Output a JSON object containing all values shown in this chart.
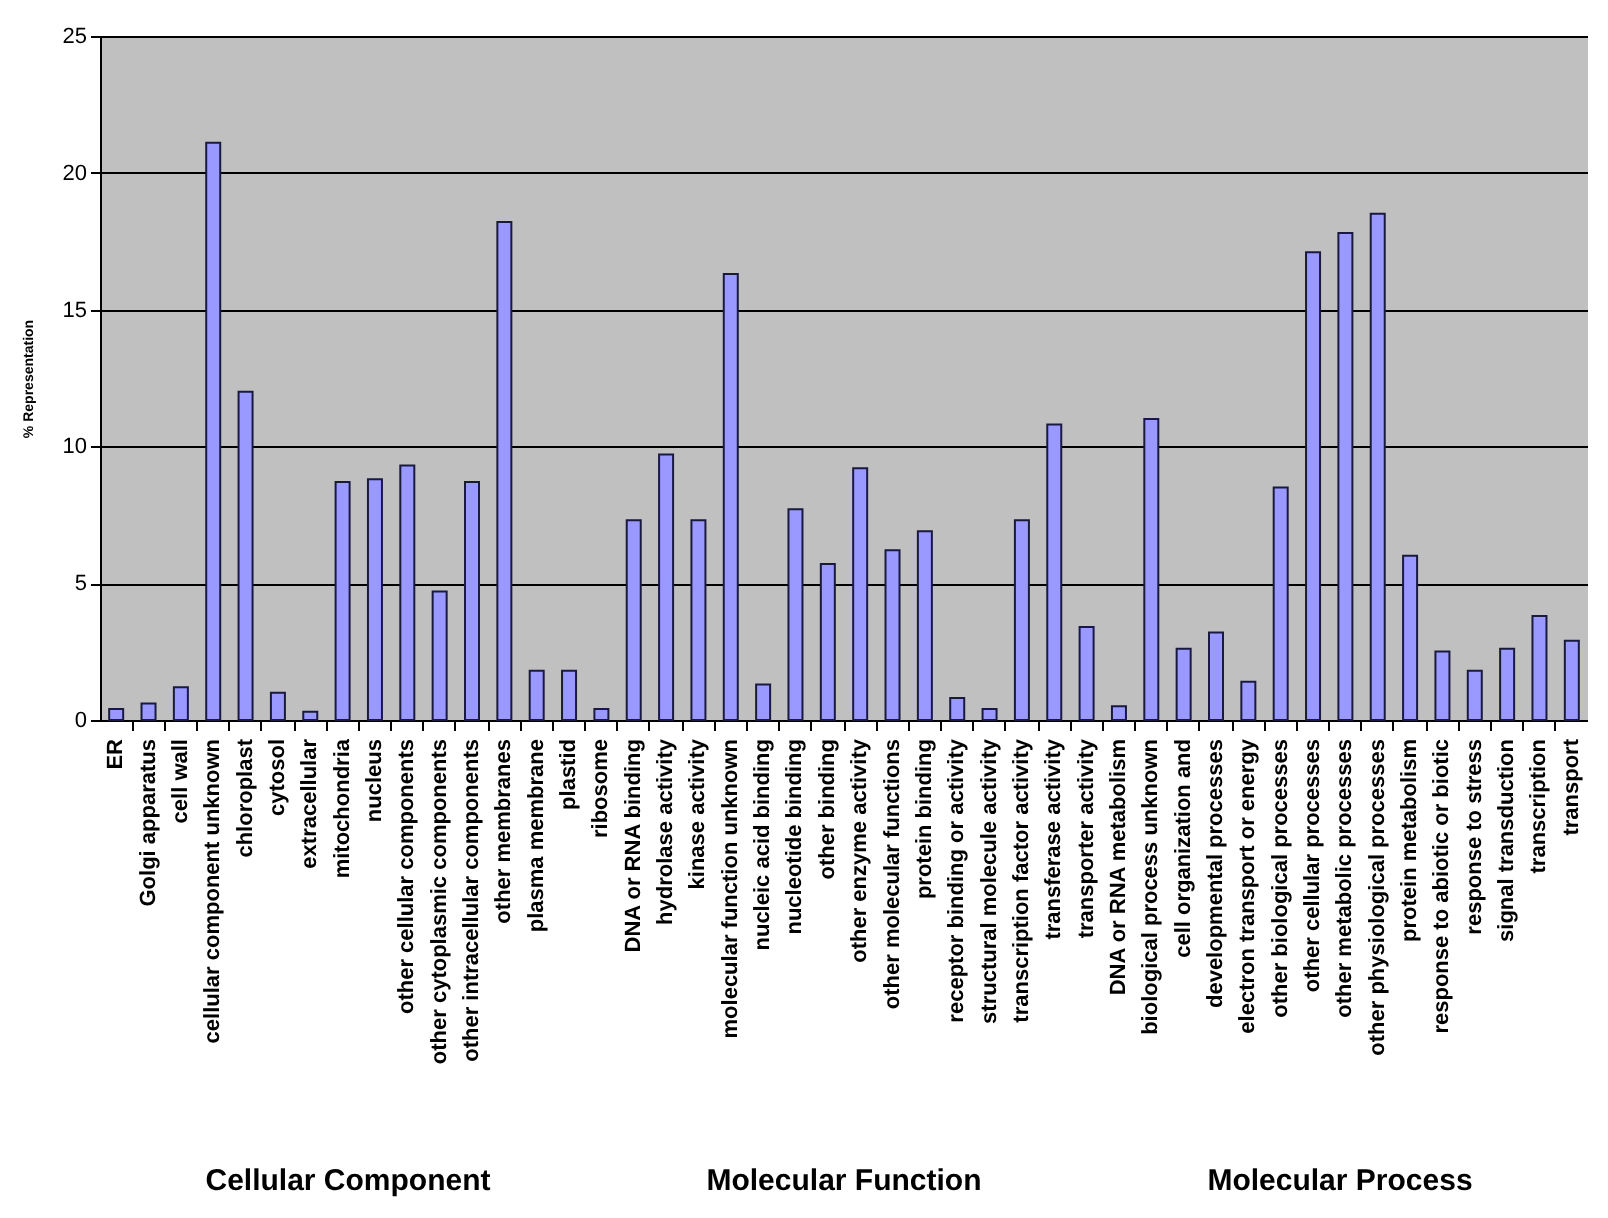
{
  "chart_data": {
    "type": "bar",
    "ylabel": "% Representation",
    "categories": [
      "ER",
      "Golgi apparatus",
      "cell wall",
      "cellular component unknown",
      "chloroplast",
      "cytosol",
      "extracellular",
      "mitochondria",
      "nucleus",
      "other cellular components",
      "other cytoplasmic components",
      "other intracellular components",
      "other membranes",
      "plasma membrane",
      "plastid",
      "ribosome",
      "DNA or RNA binding",
      "hydrolase activity",
      "kinase activity",
      "molecular function unknown",
      "nucleic acid binding",
      "nucleotide binding",
      "other binding",
      "other enzyme activity",
      "other molecular functions",
      "protein binding",
      "receptor binding or activity",
      "structural molecule activity",
      "transcription factor activity",
      "transferase activity",
      "transporter activity",
      "DNA or RNA metabolism",
      "biological process unknown",
      "cell organization and",
      "developmental processes",
      "electron transport or energy",
      "other biological processes",
      "other cellular processes",
      "other metabolic processes",
      "other physiological processes",
      "protein metabolism",
      "response to abiotic or biotic",
      "response to stress",
      "signal transduction",
      "transcription",
      "transport"
    ],
    "values": [
      0.4,
      0.6,
      1.2,
      21.1,
      12.0,
      1.0,
      0.3,
      8.7,
      8.8,
      9.3,
      4.7,
      8.7,
      18.2,
      1.8,
      1.8,
      0.4,
      7.3,
      9.7,
      7.3,
      16.3,
      1.3,
      7.7,
      5.7,
      9.2,
      6.2,
      6.9,
      0.8,
      0.4,
      7.3,
      10.8,
      3.4,
      0.5,
      11.0,
      2.6,
      3.2,
      1.4,
      8.5,
      17.1,
      17.8,
      18.5,
      6.0,
      2.5,
      1.8,
      2.6,
      3.8,
      2.9
    ],
    "color": "#9999ff",
    "ylim": [
      0,
      25
    ],
    "yticks": [
      0,
      5,
      10,
      15,
      20,
      25
    ],
    "grid": "y",
    "annotations": [
      "Cellular Component",
      "Molecular Function",
      "Molecular Process"
    ]
  }
}
